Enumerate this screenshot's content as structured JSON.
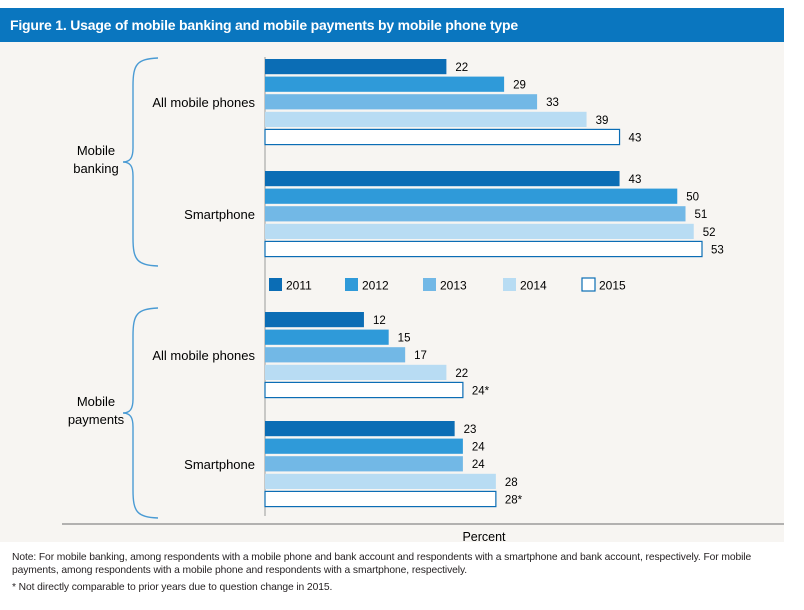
{
  "figure": {
    "title": "Figure 1. Usage of mobile banking and mobile payments by mobile phone type"
  },
  "colors": {
    "2011": "#0b6db5",
    "2012": "#2f9ad9",
    "2013": "#72b8e6",
    "2014": "#b8dcf3",
    "2015": "#ffffff",
    "outline": "#0b6db5",
    "title_bar": "#0a76bf",
    "panel": "#f7f5f2"
  },
  "chart_data": {
    "type": "bar",
    "orientation": "horizontal",
    "title": "Figure 1. Usage of mobile banking and mobile payments by mobile phone type",
    "xlabel": "Percent",
    "xlim": [
      0,
      53
    ],
    "legend": [
      "2011",
      "2012",
      "2013",
      "2014",
      "2015"
    ],
    "legend_position": "middle",
    "sections": [
      {
        "label": "Mobile banking",
        "label_lines": [
          "Mobile",
          "banking"
        ],
        "groups": [
          {
            "label": "All mobile phones",
            "values": [
              22,
              29,
              33,
              39,
              43
            ],
            "labels": [
              "22",
              "29",
              "33",
              "39",
              "43"
            ]
          },
          {
            "label": "Smartphone",
            "values": [
              43,
              50,
              51,
              52,
              53
            ],
            "labels": [
              "43",
              "50",
              "51",
              "52",
              "53"
            ]
          }
        ]
      },
      {
        "label": "Mobile payments",
        "label_lines": [
          "Mobile",
          "payments"
        ],
        "groups": [
          {
            "label": "All mobile phones",
            "values": [
              12,
              15,
              17,
              22,
              24
            ],
            "labels": [
              "12",
              "15",
              "17",
              "22",
              "24*"
            ]
          },
          {
            "label": "Smartphone",
            "values": [
              23,
              24,
              24,
              28,
              28
            ],
            "labels": [
              "23",
              "24",
              "24",
              "28",
              "28*"
            ]
          }
        ]
      }
    ]
  },
  "notes": {
    "note": "Note: For mobile banking, among respondents with a mobile phone and bank account and respondents with a smartphone and bank account, respectively. For mobile payments, among respondents with a mobile phone and respondents with a smartphone, respectively.",
    "footnote": "* Not directly comparable to prior years due to question change in 2015."
  }
}
